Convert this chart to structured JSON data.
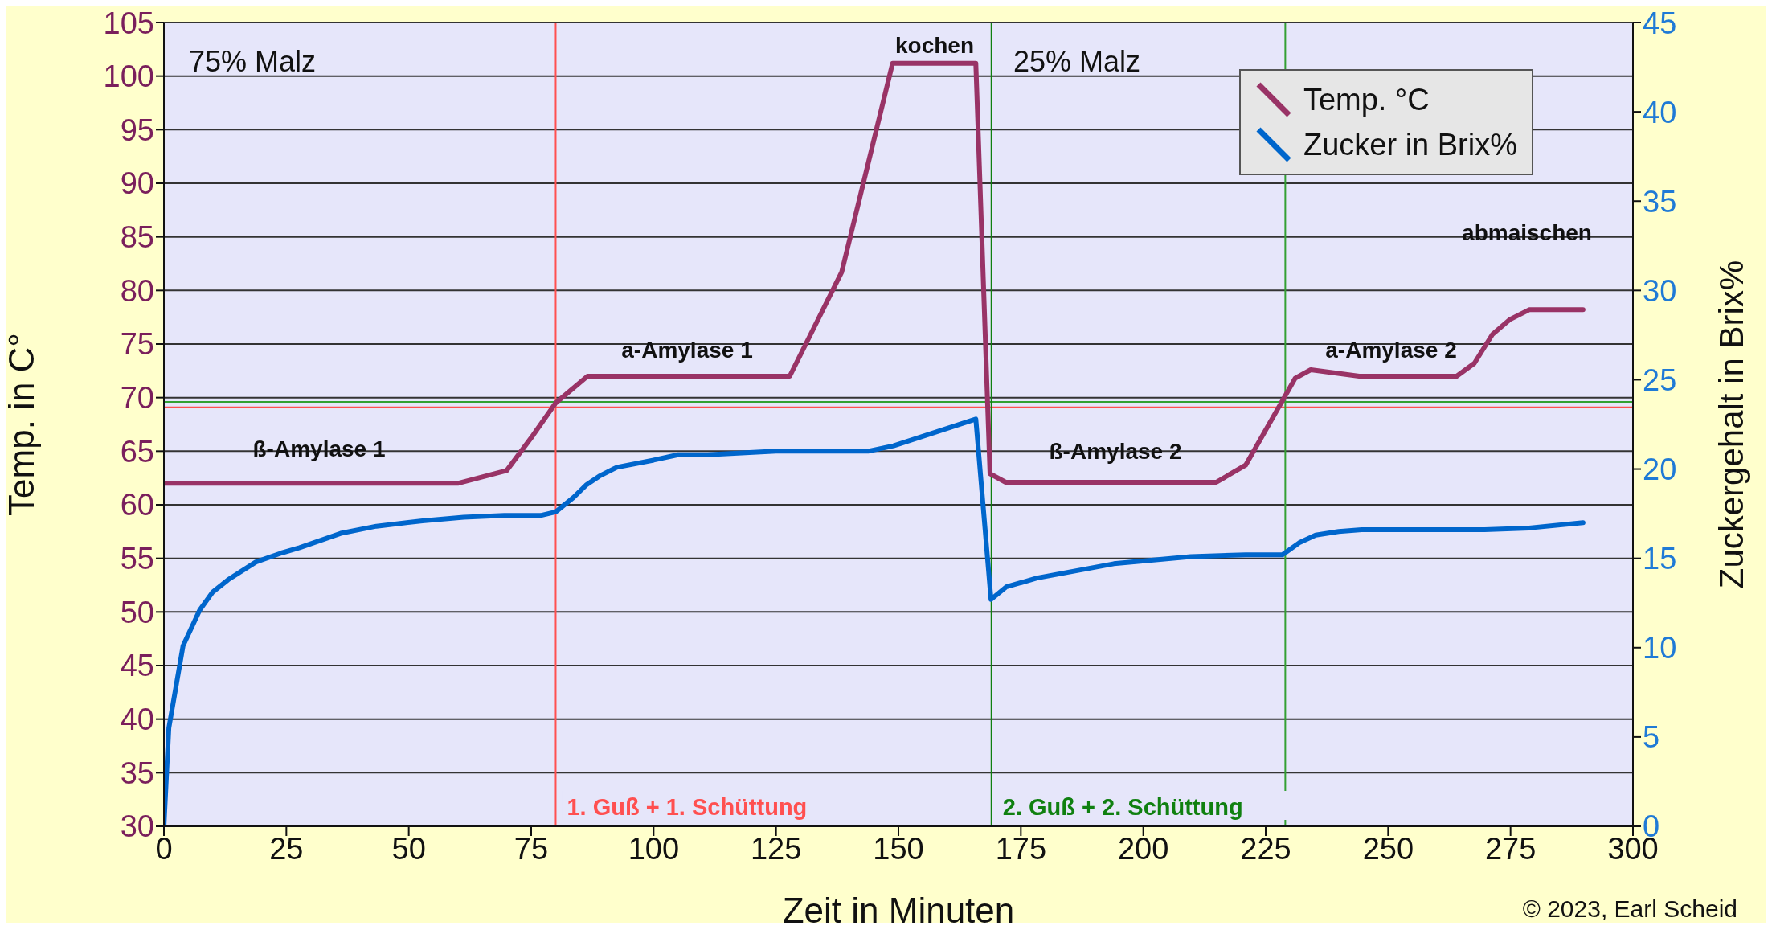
{
  "chart_data": {
    "type": "line",
    "xlabel": "Zeit in Minuten",
    "ylabel": "Temp. in C°",
    "y2label": "Zuckergehalt in Brix%",
    "xlim": [
      0,
      300
    ],
    "xticks": [
      0,
      25,
      50,
      75,
      100,
      125,
      150,
      175,
      200,
      225,
      250,
      275,
      300
    ],
    "ylim": [
      30,
      105
    ],
    "yticks": [
      30,
      35,
      40,
      45,
      50,
      55,
      60,
      65,
      70,
      75,
      80,
      85,
      90,
      95,
      100,
      105
    ],
    "y2lim": [
      0,
      45
    ],
    "y2ticks": [
      0,
      5,
      10,
      15,
      20,
      25,
      30,
      35,
      40,
      45
    ],
    "grid": "y",
    "legend": "top right",
    "marker": "none",
    "line_style": "solid",
    "series": [
      {
        "name": "Temp. °C",
        "color": "#993366",
        "x": [
          0,
          60,
          70,
          75.4,
          80,
          86.5,
          106,
          127.8,
          138.4,
          148.8,
          165.8,
          168.7,
          171.9,
          214.9,
          220.9,
          228.4,
          231,
          234.2,
          244.1,
          264,
          267.6,
          271.3,
          274.9,
          278.8,
          289.8
        ],
        "values": [
          62,
          62,
          63.2,
          66.5,
          69.5,
          72,
          72,
          72,
          81.7,
          101.2,
          101.2,
          62.9,
          62.1,
          62.1,
          63.7,
          69.7,
          71.8,
          72.6,
          72,
          72,
          73.2,
          75.9,
          77.3,
          78.2,
          78.2
        ]
      },
      {
        "name": "Zucker in Brix%",
        "color": "#0066cc",
        "axis": "y2",
        "x": [
          0,
          1,
          3.9,
          7.3,
          9.9,
          13.1,
          18.8,
          24,
          27.7,
          36.1,
          43.4,
          52.8,
          61.2,
          69.5,
          76.9,
          80,
          83.6,
          86.2,
          88.9,
          92.5,
          100,
          105,
          111,
          125,
          143.8,
          149,
          165.8,
          168.9,
          172,
          178.3,
          194,
          209.7,
          220.9,
          228.4,
          232,
          235.2,
          239.9,
          244.6,
          269.7,
          278.8,
          289.8
        ],
        "values": [
          0,
          5.5,
          10.1,
          12.1,
          13.1,
          13.8,
          14.8,
          15.3,
          15.6,
          16.4,
          16.8,
          17.1,
          17.3,
          17.4,
          17.4,
          17.6,
          18.4,
          19.1,
          19.6,
          20.1,
          20.5,
          20.8,
          20.8,
          21,
          21,
          21.3,
          22.8,
          12.7,
          13.4,
          13.9,
          14.7,
          15.1,
          15.2,
          15.2,
          15.9,
          16.3,
          16.5,
          16.6,
          16.6,
          16.7,
          17
        ]
      }
    ],
    "ref_lines": [
      {
        "axis": "y",
        "value": 69.1,
        "color": "#ff5050"
      },
      {
        "axis": "y",
        "value": 69.6,
        "color": "#33a033"
      },
      {
        "axis": "x",
        "value": 80,
        "color": "#ff5050",
        "label": "1. Guß + 1. Schüttung"
      },
      {
        "axis": "x",
        "value": 229,
        "color": "#33a033"
      },
      {
        "axis": "x",
        "value": 169,
        "color": "#108010",
        "label": "2. Guß + 2. Schüttung"
      }
    ],
    "annotations": [
      "75% Malz",
      "kochen",
      "25% Malz",
      "ß-Amylase 1",
      "a-Amylase 1",
      "ß-Amylase 2",
      "a-Amylase 2",
      "abmaischen",
      "© 2023, Earl Scheid"
    ]
  }
}
